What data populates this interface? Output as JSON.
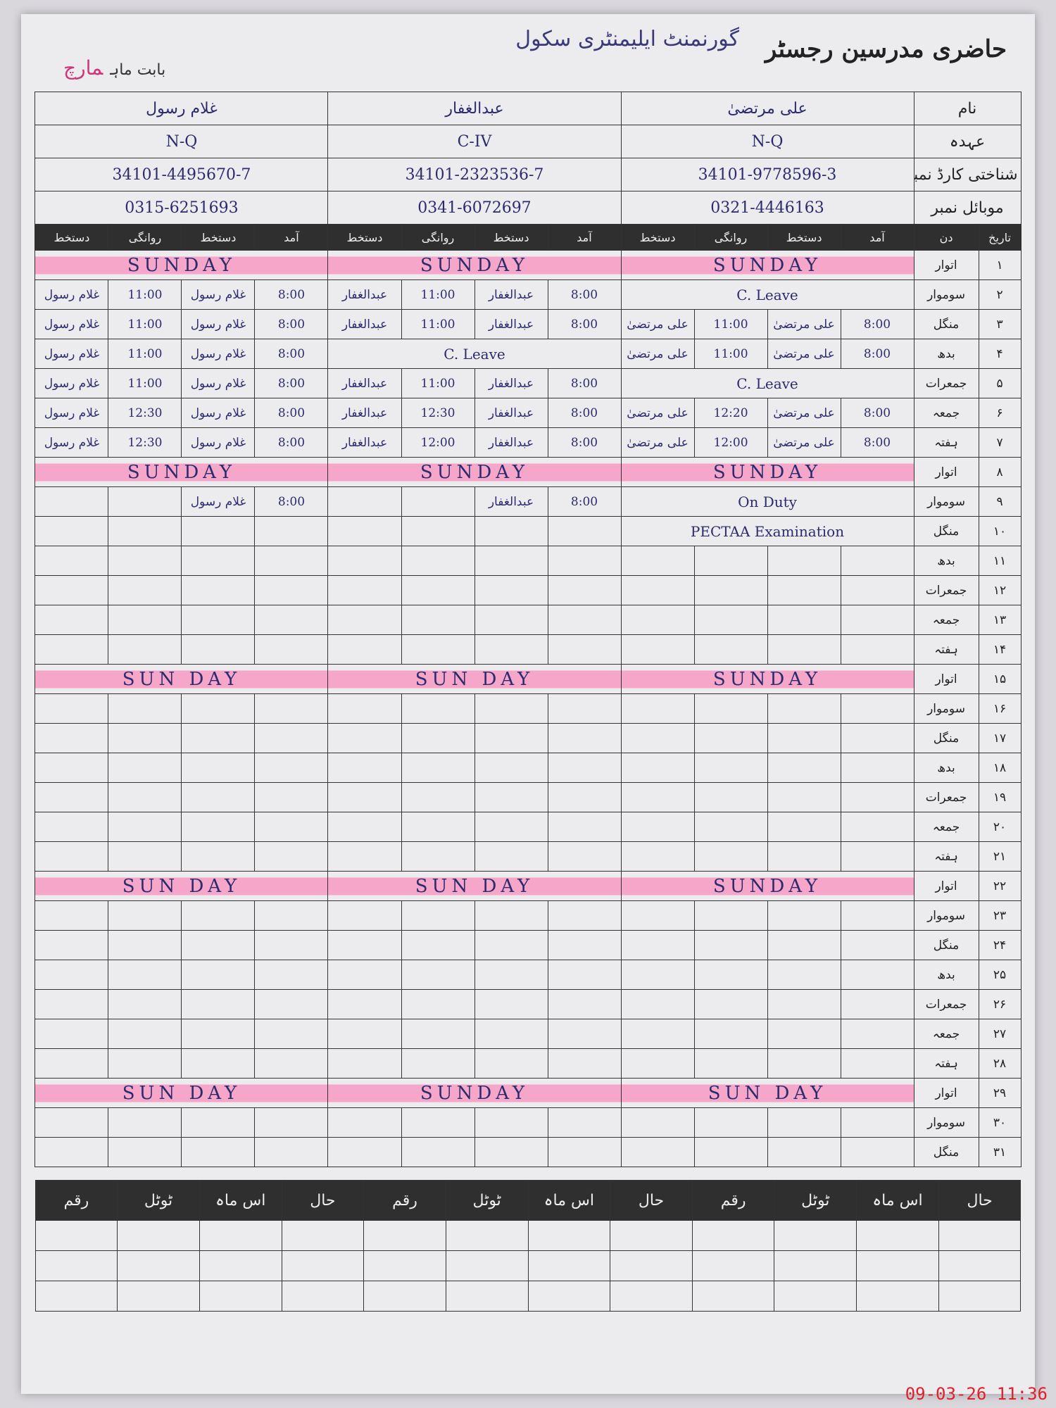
{
  "header": {
    "title": "حاضری مدرسین رجسٹر",
    "school": "گورنمنٹ ایلیمنٹری سکول",
    "month_label": "بابت ماہ",
    "month": "مارچ"
  },
  "labels": {
    "name": "نام",
    "post": "عہدہ",
    "cnic": "شناختی کارڈ نمبر",
    "mobile": "موبائل نمبر",
    "date": "تاریخ",
    "day": "دن"
  },
  "subcolumns": [
    "آمد",
    "دستخط",
    "روانگی",
    "دستخط"
  ],
  "teachers": [
    {
      "name": "علی مرتضیٰ",
      "post": "N-Q",
      "cnic": "34101-9778596-3",
      "mobile": "0321-4446163"
    },
    {
      "name": "عبدالغفار",
      "post": "C-IV",
      "cnic": "34101-2323536-7",
      "mobile": "0341-6072697"
    },
    {
      "name": "غلام رسول",
      "post": "N-Q",
      "cnic": "34101-4495670-7",
      "mobile": "0315-6251693"
    }
  ],
  "rows": [
    {
      "date": "۱",
      "day": "اتوار",
      "highlight": true,
      "entries": [
        {
          "note": "SUNDAY"
        },
        {
          "note": "SUNDAY"
        },
        {
          "note": "SUNDAY"
        }
      ]
    },
    {
      "date": "۲",
      "day": "سوموار",
      "entries": [
        {
          "note": "C. Leave"
        },
        {
          "arrival": "8:00",
          "arrival_sign": "عبدالغفار",
          "departure": "11:00",
          "departure_sign": "عبدالغفار"
        },
        {
          "arrival": "8:00",
          "arrival_sign": "غلام رسول",
          "departure": "11:00",
          "departure_sign": "غلام رسول"
        }
      ]
    },
    {
      "date": "۳",
      "day": "منگل",
      "entries": [
        {
          "arrival": "8:00",
          "arrival_sign": "علی مرتضیٰ",
          "departure": "11:00",
          "departure_sign": "علی مرتضیٰ"
        },
        {
          "arrival": "8:00",
          "arrival_sign": "عبدالغفار",
          "departure": "11:00",
          "departure_sign": "عبدالغفار"
        },
        {
          "arrival": "8:00",
          "arrival_sign": "غلام رسول",
          "departure": "11:00",
          "departure_sign": "غلام رسول"
        }
      ]
    },
    {
      "date": "۴",
      "day": "بدھ",
      "entries": [
        {
          "arrival": "8:00",
          "arrival_sign": "علی مرتضیٰ",
          "departure": "11:00",
          "departure_sign": "علی مرتضیٰ"
        },
        {
          "note": "C. Leave"
        },
        {
          "arrival": "8:00",
          "arrival_sign": "غلام رسول",
          "departure": "11:00",
          "departure_sign": "غلام رسول"
        }
      ]
    },
    {
      "date": "۵",
      "day": "جمعرات",
      "entries": [
        {
          "note": "C. Leave"
        },
        {
          "arrival": "8:00",
          "arrival_sign": "عبدالغفار",
          "departure": "11:00",
          "departure_sign": "عبدالغفار"
        },
        {
          "arrival": "8:00",
          "arrival_sign": "غلام رسول",
          "departure": "11:00",
          "departure_sign": "غلام رسول"
        }
      ]
    },
    {
      "date": "۶",
      "day": "جمعہ",
      "entries": [
        {
          "arrival": "8:00",
          "arrival_sign": "علی مرتضیٰ",
          "departure": "12:20",
          "departure_sign": "علی مرتضیٰ"
        },
        {
          "arrival": "8:00",
          "arrival_sign": "عبدالغفار",
          "departure": "12:30",
          "departure_sign": "عبدالغفار"
        },
        {
          "arrival": "8:00",
          "arrival_sign": "غلام رسول",
          "departure": "12:30",
          "departure_sign": "غلام رسول"
        }
      ]
    },
    {
      "date": "۷",
      "day": "ہفتہ",
      "entries": [
        {
          "arrival": "8:00",
          "arrival_sign": "علی مرتضیٰ",
          "departure": "12:00",
          "departure_sign": "علی مرتضیٰ"
        },
        {
          "arrival": "8:00",
          "arrival_sign": "عبدالغفار",
          "departure": "12:00",
          "departure_sign": "عبدالغفار"
        },
        {
          "arrival": "8:00",
          "arrival_sign": "غلام رسول",
          "departure": "12:30",
          "departure_sign": "غلام رسول"
        }
      ]
    },
    {
      "date": "۸",
      "day": "اتوار",
      "highlight": true,
      "entries": [
        {
          "note": "SUNDAY"
        },
        {
          "note": "SUNDAY"
        },
        {
          "note": "SUNDAY"
        }
      ]
    },
    {
      "date": "۹",
      "day": "سوموار",
      "entries": [
        {
          "note": "On Duty"
        },
        {
          "arrival": "8:00",
          "arrival_sign": "عبدالغفار"
        },
        {
          "arrival": "8:00",
          "arrival_sign": "غلام رسول"
        }
      ]
    },
    {
      "date": "۱۰",
      "day": "منگل",
      "entries": [
        {
          "note": "PECTAA Examination"
        }
      ]
    },
    {
      "date": "۱۱",
      "day": "بدھ"
    },
    {
      "date": "۱۲",
      "day": "جمعرات"
    },
    {
      "date": "۱۳",
      "day": "جمعہ"
    },
    {
      "date": "۱۴",
      "day": "ہفتہ"
    },
    {
      "date": "۱۵",
      "day": "اتوار",
      "highlight": true,
      "entries": [
        {
          "note": "SUNDAY"
        },
        {
          "note": "SUN DAY"
        },
        {
          "note": "SUN DAY"
        }
      ]
    },
    {
      "date": "۱۶",
      "day": "سوموار"
    },
    {
      "date": "۱۷",
      "day": "منگل"
    },
    {
      "date": "۱۸",
      "day": "بدھ"
    },
    {
      "date": "۱۹",
      "day": "جمعرات"
    },
    {
      "date": "۲۰",
      "day": "جمعہ"
    },
    {
      "date": "۲۱",
      "day": "ہفتہ"
    },
    {
      "date": "۲۲",
      "day": "اتوار",
      "highlight": true,
      "entries": [
        {
          "note": "SUNDAY"
        },
        {
          "note": "SUN DAY"
        },
        {
          "note": "SUN DAY"
        }
      ]
    },
    {
      "date": "۲۳",
      "day": "سوموار"
    },
    {
      "date": "۲۴",
      "day": "منگل"
    },
    {
      "date": "۲۵",
      "day": "بدھ"
    },
    {
      "date": "۲۶",
      "day": "جمعرات"
    },
    {
      "date": "۲۷",
      "day": "جمعہ"
    },
    {
      "date": "۲۸",
      "day": "ہفتہ"
    },
    {
      "date": "۲۹",
      "day": "اتوار",
      "highlight": true,
      "entries": [
        {
          "note": "SUN DAY"
        },
        {
          "note": "SUNDAY"
        },
        {
          "note": "SUN DAY"
        }
      ]
    },
    {
      "date": "۳۰",
      "day": "سوموار"
    },
    {
      "date": "۳۱",
      "day": "منگل"
    }
  ],
  "footer": {
    "labels": [
      "حال",
      "اس ماہ",
      "ٹوٹل",
      "رقم"
    ]
  },
  "timestamp": "09-03-26 11:36"
}
